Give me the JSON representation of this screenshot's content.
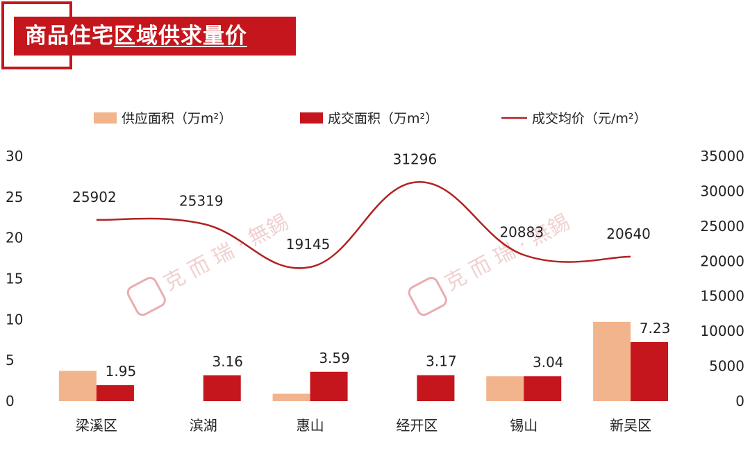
{
  "header": {
    "title_part1": "商品住宅",
    "title_part2": "区域供求量价",
    "accent_color": "#c4161c"
  },
  "watermark": {
    "text": "克 而 瑞 · 無錫",
    "stamp_icon": "seal-stamp-icon"
  },
  "chart_data": {
    "type": "bar",
    "categories": [
      "梁溪区",
      "滨湖",
      "惠山",
      "经开区",
      "锡山",
      "新吴区"
    ],
    "series": [
      {
        "name": "供应面积（万m²）",
        "type": "bar",
        "axis": "left",
        "color": "#f2b48c",
        "values": [
          3.7,
          0,
          0.9,
          0,
          3.04,
          9.7
        ],
        "labels_shown": false
      },
      {
        "name": "成交面积（万m²）",
        "type": "bar",
        "axis": "left",
        "color": "#c4161c",
        "values": [
          1.95,
          3.16,
          3.59,
          3.17,
          3.04,
          7.23
        ],
        "labels_shown": true
      },
      {
        "name": "成交均价（元/m²）",
        "type": "line",
        "axis": "right",
        "color": "#b22222",
        "smooth": true,
        "values": [
          25902,
          25319,
          19145,
          31296,
          20883,
          20640
        ],
        "labels_shown": true
      }
    ],
    "y_left": {
      "ticks": [
        0,
        5,
        10,
        15,
        20,
        25,
        30
      ],
      "range": [
        0,
        30
      ]
    },
    "y_right": {
      "ticks": [
        0,
        5000,
        10000,
        15000,
        20000,
        25000,
        30000,
        35000
      ],
      "range": [
        0,
        35000
      ]
    },
    "grid": false,
    "legend_position": "top"
  }
}
